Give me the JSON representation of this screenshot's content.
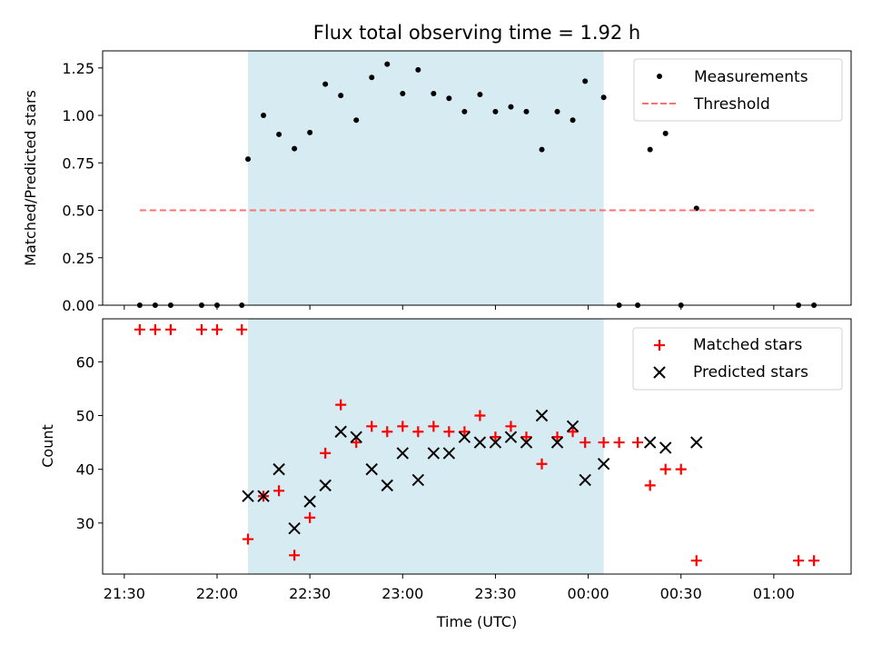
{
  "chart_data": [
    {
      "type": "scatter",
      "title": "Flux total observing time = 1.92 h",
      "xlabel": "",
      "ylabel": "Matched/Predicted stars",
      "ylim": [
        0,
        1.34
      ],
      "xlim": [
        "21:23",
        "01:25"
      ],
      "yticks": [
        "0.00",
        "0.25",
        "0.50",
        "0.75",
        "1.00",
        "1.25"
      ],
      "ytick_values": [
        0,
        0.25,
        0.5,
        0.75,
        1.0,
        1.25
      ],
      "shaded_span": {
        "start": "22:10",
        "end": "00:05",
        "color": "#add8e6"
      },
      "legend": {
        "position": "top-right",
        "entries": [
          "Measurements",
          "Threshold"
        ]
      },
      "series": [
        {
          "name": "Measurements",
          "kind": "points",
          "color": "#000000",
          "x": [
            "21:35",
            "21:40",
            "21:45",
            "21:55",
            "22:00",
            "22:08",
            "22:10",
            "22:15",
            "22:20",
            "22:25",
            "22:30",
            "22:35",
            "22:40",
            "22:45",
            "22:50",
            "22:55",
            "23:00",
            "23:05",
            "23:10",
            "23:15",
            "23:20",
            "23:25",
            "23:30",
            "23:35",
            "23:40",
            "23:45",
            "23:50",
            "23:55",
            "23:59",
            "00:05",
            "00:10",
            "00:16",
            "00:20",
            "00:25",
            "00:30",
            "00:35",
            "01:08",
            "01:13"
          ],
          "y": [
            0,
            0,
            0,
            0,
            0,
            0,
            0.77,
            1.0,
            0.9,
            0.825,
            0.91,
            1.165,
            1.105,
            0.975,
            1.2,
            1.27,
            1.115,
            1.24,
            1.115,
            1.09,
            1.02,
            1.11,
            1.02,
            1.045,
            1.02,
            0.82,
            1.02,
            0.975,
            1.18,
            1.095,
            0,
            0,
            0.82,
            0.905,
            0,
            0.51,
            0,
            0
          ]
        },
        {
          "name": "Threshold",
          "kind": "dashed-line",
          "color": "#ff7070",
          "x": [
            "21:35",
            "01:13"
          ],
          "y": [
            0.5,
            0.5
          ]
        }
      ]
    },
    {
      "type": "scatter",
      "title": "",
      "xlabel": "Time (UTC)",
      "ylabel": "Count",
      "ylim": [
        20.5,
        68
      ],
      "xlim": [
        "21:23",
        "01:25"
      ],
      "xticks": [
        "21:30",
        "22:00",
        "22:30",
        "23:00",
        "23:30",
        "00:00",
        "00:30",
        "01:00"
      ],
      "yticks": [
        "30",
        "40",
        "50",
        "60"
      ],
      "ytick_values": [
        30,
        40,
        50,
        60
      ],
      "shaded_span": {
        "start": "22:10",
        "end": "00:05",
        "color": "#add8e6"
      },
      "legend": {
        "position": "top-right",
        "entries": [
          "Matched stars",
          "Predicted stars"
        ]
      },
      "series": [
        {
          "name": "Matched stars",
          "kind": "plus",
          "color": "#ff0000",
          "x": [
            "21:35",
            "21:40",
            "21:45",
            "21:55",
            "22:00",
            "22:08",
            "22:10",
            "22:15",
            "22:20",
            "22:25",
            "22:30",
            "22:35",
            "22:40",
            "22:45",
            "22:50",
            "22:55",
            "23:00",
            "23:05",
            "23:10",
            "23:15",
            "23:20",
            "23:25",
            "23:30",
            "23:35",
            "23:40",
            "23:45",
            "23:50",
            "23:55",
            "23:59",
            "00:05",
            "00:10",
            "00:16",
            "00:20",
            "00:25",
            "00:30",
            "00:35",
            "01:08",
            "01:13"
          ],
          "y": [
            66,
            66,
            66,
            66,
            66,
            66,
            27,
            35,
            36,
            24,
            31,
            43,
            52,
            45,
            48,
            47,
            48,
            47,
            48,
            47,
            47,
            50,
            46,
            48,
            46,
            41,
            46,
            47,
            45,
            45,
            45,
            45,
            37,
            40,
            40,
            23,
            23,
            23
          ]
        },
        {
          "name": "Predicted stars",
          "kind": "x",
          "color": "#000000",
          "x": [
            "22:10",
            "22:15",
            "22:20",
            "22:25",
            "22:30",
            "22:35",
            "22:40",
            "22:45",
            "22:50",
            "22:55",
            "23:00",
            "23:05",
            "23:10",
            "23:15",
            "23:20",
            "23:25",
            "23:30",
            "23:35",
            "23:40",
            "23:45",
            "23:50",
            "23:55",
            "23:59",
            "00:05",
            "00:20",
            "00:25",
            "00:35"
          ],
          "y": [
            35,
            35,
            40,
            29,
            34,
            37,
            47,
            46,
            40,
            37,
            43,
            38,
            43,
            43,
            46,
            45,
            45,
            46,
            45,
            50,
            45,
            48,
            38,
            41,
            45,
            44,
            45
          ]
        }
      ]
    }
  ]
}
